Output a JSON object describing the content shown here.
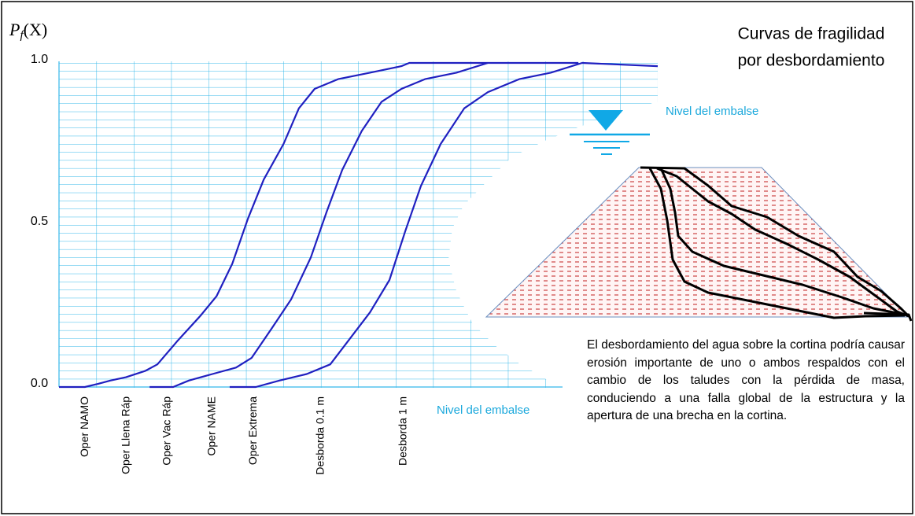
{
  "chart_data": {
    "type": "line",
    "title": [
      "Curvas de fragilidad",
      "por desbordamiento"
    ],
    "ylabel": [
      "P",
      "f",
      "(X)"
    ],
    "xlabel": "Nivel del embalse",
    "xlim": [
      0,
      16
    ],
    "ylim": [
      0,
      1
    ],
    "yticks": [
      {
        "value": 0,
        "label": "0.0"
      },
      {
        "value": 0.5,
        "label": "0.5"
      },
      {
        "value": 1,
        "label": "1.0"
      }
    ],
    "xticks": [
      {
        "value": 0.7,
        "label": "Oper NAMO"
      },
      {
        "value": 1.8,
        "label": "Oper Llena Ráp"
      },
      {
        "value": 2.9,
        "label": "Oper Vac Ráp"
      },
      {
        "value": 4.1,
        "label": "Oper NAME"
      },
      {
        "value": 5.2,
        "label": "Oper Extrema"
      },
      {
        "value": 7.0,
        "label": "Desborda 0.1 m"
      },
      {
        "value": 9.2,
        "label": "Desborda 1 m"
      }
    ],
    "grid": true,
    "series": [
      {
        "color": "#2020c0",
        "x": [
          0,
          0.69,
          1.05,
          1.37,
          1.79,
          2.31,
          2.63,
          3.15,
          3.78,
          4.21,
          4.63,
          5.05,
          5.47,
          6.0,
          6.41,
          6.83,
          7.46,
          8.31,
          9.15,
          9.36,
          11.46
        ],
        "values": [
          0,
          0,
          0.01,
          0.02,
          0.03,
          0.05,
          0.07,
          0.14,
          0.22,
          0.28,
          0.38,
          0.52,
          0.64,
          0.75,
          0.86,
          0.92,
          0.95,
          0.97,
          0.99,
          1.0,
          1.0
        ]
      },
      {
        "color": "#2020c0",
        "x": [
          2.42,
          3.05,
          3.47,
          4.1,
          4.73,
          5.15,
          5.68,
          6.2,
          6.73,
          7.15,
          7.57,
          8.09,
          8.62,
          9.15,
          9.78,
          10.62,
          11.46,
          13.88
        ],
        "values": [
          0,
          0,
          0.02,
          0.04,
          0.06,
          0.09,
          0.18,
          0.27,
          0.4,
          0.54,
          0.67,
          0.79,
          0.88,
          0.92,
          0.95,
          0.97,
          1.0,
          1.0
        ]
      },
      {
        "color": "#2020c0",
        "x": [
          4.56,
          5.26,
          5.89,
          6.62,
          7.25,
          7.78,
          8.31,
          8.83,
          9.25,
          9.67,
          10.2,
          10.83,
          11.46,
          12.3,
          13.14,
          13.98,
          16
        ],
        "values": [
          0,
          0,
          0.02,
          0.04,
          0.07,
          0.15,
          0.23,
          0.33,
          0.48,
          0.62,
          0.75,
          0.86,
          0.91,
          0.95,
          0.97,
          1.0,
          0.99
        ]
      }
    ],
    "annotations": {
      "water_level": "Nivel del embalse",
      "description": "El desbordamiento del agua sobre la cortina podría causar erosión importante de uno o ambos respaldos con el cambio de los taludes con la pérdida de masa, conduciendo a una falla global de la estructura y la apertura de una brecha en la cortina."
    }
  }
}
